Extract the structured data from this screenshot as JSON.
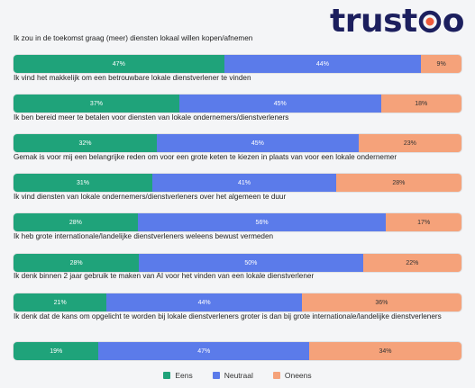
{
  "brand": {
    "name": "trustoo",
    "prefix": "trust",
    "suffix": "o"
  },
  "colors": {
    "eens": "#1fa37a",
    "neutraal": "#5b7bea",
    "oneens": "#f5a27a"
  },
  "chart_data": {
    "type": "bar",
    "orientation": "horizontal",
    "stacked": true,
    "categories": [
      "Ik zou in de toekomst graag (meer) diensten lokaal willen kopen/afnemen",
      "Ik vind het makkelijk om een betrouwbare lokale dienstverlener te vinden",
      "Ik ben bereid meer te betalen voor diensten van lokale ondernemers/dienstverleners",
      "Gemak is voor mij een belangrijke reden om voor een grote keten te kiezen in plaats van voor een lokale ondernemer",
      "Ik vind diensten van lokale ondernemers/dienstverleners over het algemeen te duur",
      "Ik heb grote internationale/landelijke dienstverleners weleens bewust vermeden",
      "Ik denk binnen 2 jaar gebruik te maken van AI voor het vinden van een lokale dienstverlener",
      "Ik denk dat de kans om opgelicht te worden bij lokale dienstverleners groter is dan bij grote internationale/landelijke dienstverleners"
    ],
    "series": [
      {
        "name": "Eens",
        "values": [
          47,
          37,
          32,
          31,
          28,
          28,
          21,
          19
        ]
      },
      {
        "name": "Neutraal",
        "values": [
          44,
          45,
          45,
          41,
          56,
          50,
          44,
          47
        ]
      },
      {
        "name": "Oneens",
        "values": [
          9,
          18,
          23,
          28,
          17,
          22,
          36,
          34
        ]
      }
    ],
    "value_suffix": "%",
    "legend_position": "bottom"
  }
}
